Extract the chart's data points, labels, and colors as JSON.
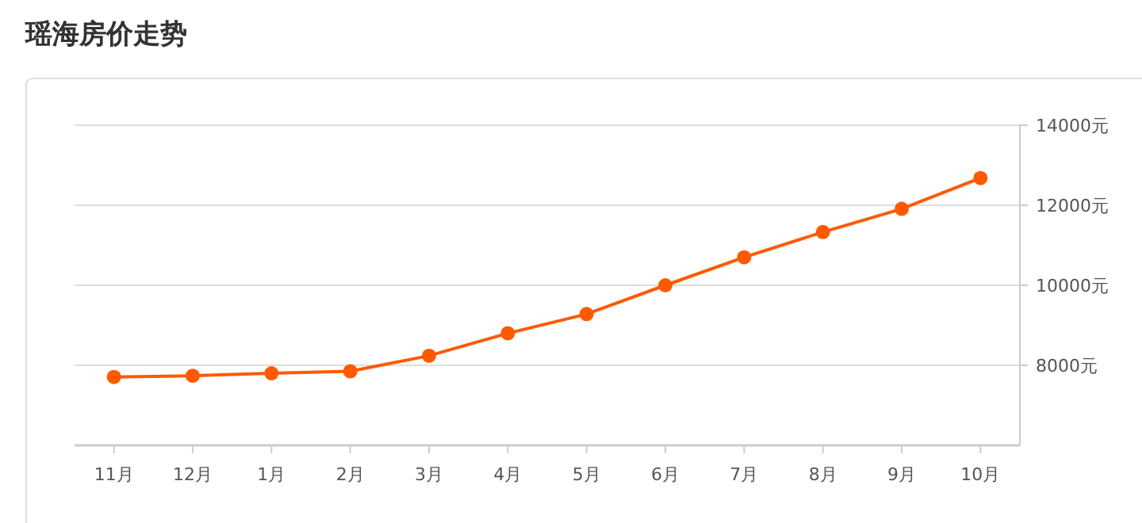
{
  "chart_data": {
    "type": "line",
    "title": "瑶海房价走势",
    "categories": [
      "11月",
      "12月",
      "1月",
      "2月",
      "3月",
      "4月",
      "5月",
      "6月",
      "7月",
      "8月",
      "9月",
      "10月"
    ],
    "series": [
      {
        "color": "#ff5a00",
        "values": [
          7710,
          7740,
          7800,
          7850,
          8240,
          8800,
          9280,
          10000,
          10700,
          11330,
          11910,
          12680
        ]
      }
    ],
    "ylim": [
      6000,
      14000
    ],
    "yticks": [
      {
        "value": 8000,
        "label": "8000元"
      },
      {
        "value": 10000,
        "label": "10000元"
      },
      {
        "value": 12000,
        "label": "12000元"
      },
      {
        "value": 14000,
        "label": "14000元"
      }
    ],
    "grid": "y",
    "marker": "circle",
    "line_style": "solid"
  }
}
